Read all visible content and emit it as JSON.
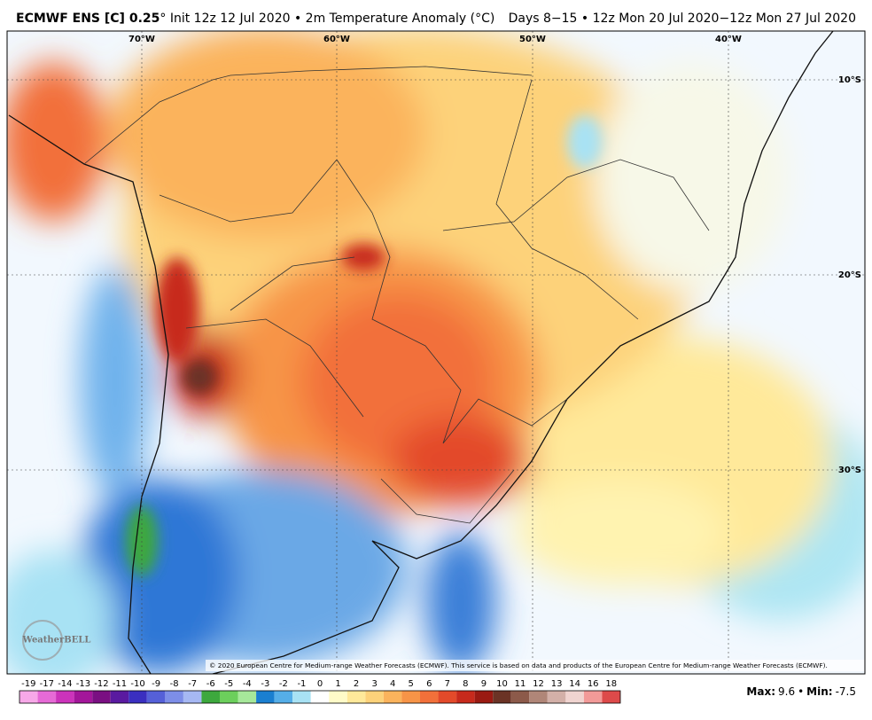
{
  "header": {
    "title_bold": "ECMWF ENS [C] 0.25",
    "title_rest": "° Init 12z 12 Jul 2020 • 2m Temperature Anomaly (°C)",
    "valid": "Days 8−15 • 12z Mon 20 Jul 2020−12z Mon 27 Jul 2020"
  },
  "map": {
    "lon_labels": [
      "70°W",
      "60°W",
      "50°W",
      "40°W"
    ],
    "lat_labels": [
      "10°S",
      "20°S",
      "30°S"
    ],
    "credit": "© 2020 European Centre for Medium-range Weather Forecasts (ECMWF). This service is based on data and products of the European Centre for Medium-range Weather Forecasts (ECMWF).",
    "logo": "WeatherBELL"
  },
  "legend": {
    "ticks": [
      -19,
      -17,
      -14,
      -13,
      -12,
      -11,
      -10,
      -9,
      -8,
      -7,
      -6,
      -5,
      -4,
      -3,
      -2,
      -1,
      0,
      1,
      2,
      3,
      4,
      5,
      6,
      7,
      8,
      9,
      10,
      11,
      12,
      13,
      14,
      16,
      18
    ],
    "colors": [
      "#f7a8e8",
      "#e66ad6",
      "#cc33bb",
      "#a3169a",
      "#7a0f82",
      "#5a1aa0",
      "#3a2fc0",
      "#5560d8",
      "#7d8ee8",
      "#a6b8f3",
      "#3da83d",
      "#6ccf5c",
      "#a6e89a",
      "#1a7fd0",
      "#55aee8",
      "#a8e2f4",
      "#ffffff",
      "#fffbc8",
      "#ffe99a",
      "#fdd27a",
      "#fbb35c",
      "#f79447",
      "#f2703a",
      "#e34a2a",
      "#c72a1c",
      "#9a1a12",
      "#6b3325",
      "#8c5a4a",
      "#b08678",
      "#d3b0a8",
      "#f0d4d0",
      "#f29a98",
      "#dd4a4a"
    ]
  },
  "stats": {
    "max_label": "Max:",
    "max": 9.6,
    "separator": "•",
    "min_label": "Min:",
    "min": -7.5
  }
}
